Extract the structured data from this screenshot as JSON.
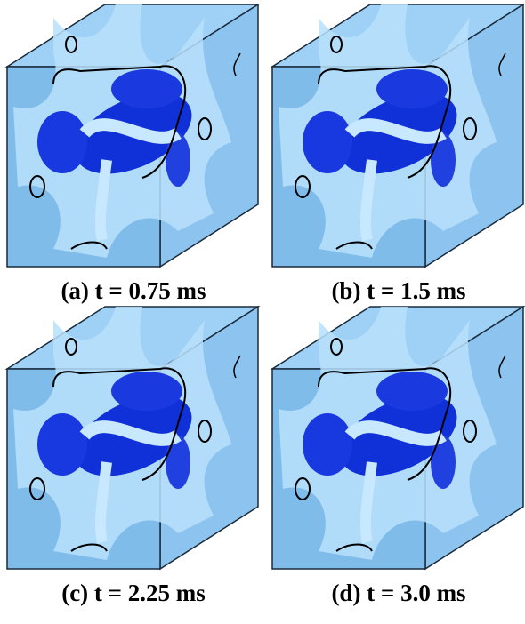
{
  "figure": {
    "panels": [
      {
        "caption": "(a) t = 0.75 ms"
      },
      {
        "caption": "(b) t = 1.5 ms"
      },
      {
        "caption": "(c) t = 2.25 ms"
      },
      {
        "caption": "(d) t = 3.0 ms"
      }
    ]
  }
}
